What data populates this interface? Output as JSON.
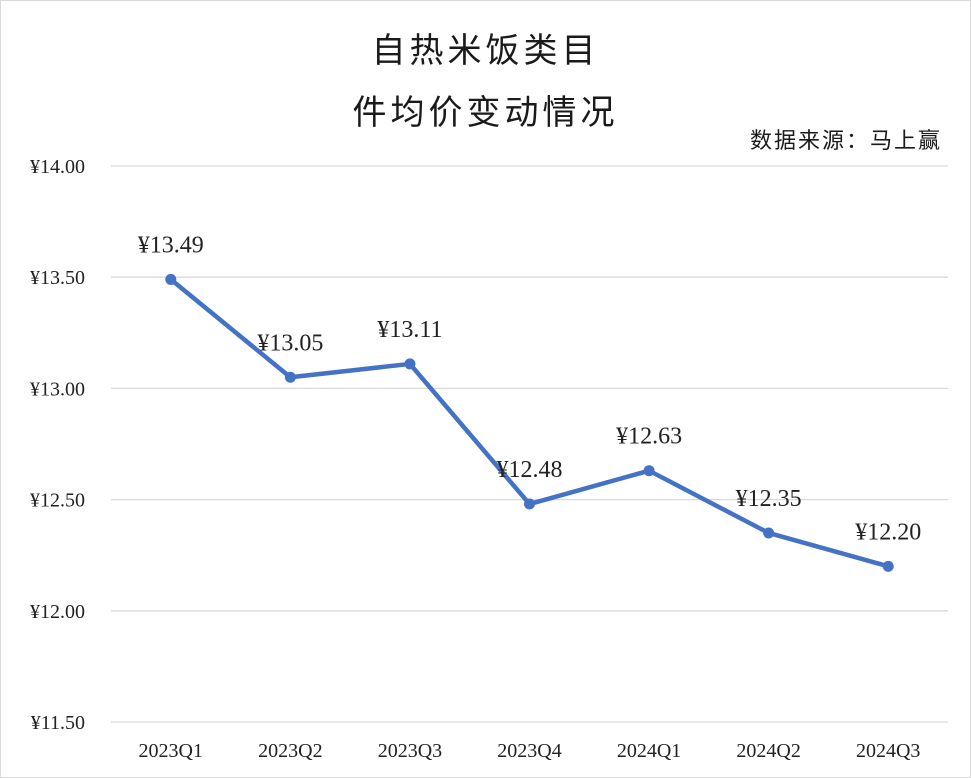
{
  "chart_data": {
    "type": "line",
    "title_lines": [
      "自热米饭类目",
      "件均价变动情况"
    ],
    "source": "数据来源：马上赢",
    "categories": [
      "2023Q1",
      "2023Q2",
      "2023Q3",
      "2023Q4",
      "2024Q1",
      "2024Q2",
      "2024Q3"
    ],
    "series": [
      {
        "values": [
          13.49,
          13.05,
          13.11,
          12.48,
          12.63,
          12.35,
          12.2
        ],
        "data_labels": [
          "¥13.49",
          "¥13.05",
          "¥13.11",
          "¥12.48",
          "¥12.63",
          "¥12.35",
          "¥12.20"
        ]
      }
    ],
    "ylim": [
      11.5,
      14.0
    ],
    "y_ticks": [
      14.0,
      13.5,
      13.0,
      12.5,
      12.0,
      11.5
    ],
    "y_tick_labels": [
      "¥14.00",
      "¥13.50",
      "¥13.00",
      "¥12.50",
      "¥12.00",
      "¥11.50"
    ],
    "grid": true,
    "legend": "none",
    "line_color": "#4472c4",
    "grid_color": "#d9d9d9"
  }
}
